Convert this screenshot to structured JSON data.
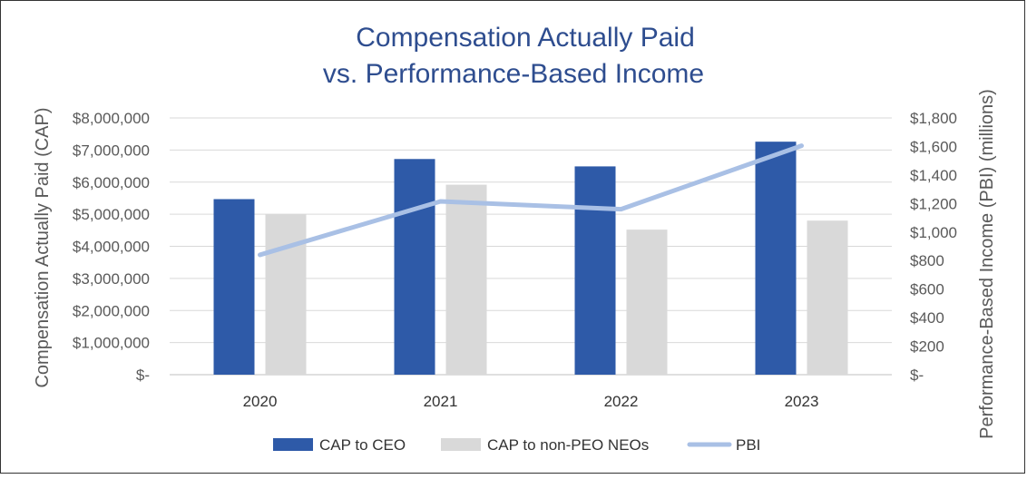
{
  "chart_data": {
    "type": "bar",
    "title_lines": [
      "Compensation Actually Paid",
      "vs. Performance-Based Income"
    ],
    "categories": [
      "2020",
      "2021",
      "2022",
      "2023"
    ],
    "series": [
      {
        "name": "CAP to CEO",
        "kind": "bar",
        "axis": "left",
        "color": "#2E5AA8",
        "values": [
          5470000,
          6720000,
          6490000,
          7260000
        ]
      },
      {
        "name": "CAP to non-PEO NEOs",
        "kind": "bar",
        "axis": "left",
        "color": "#D9D9D9",
        "values": [
          4990000,
          5920000,
          4520000,
          4800000
        ]
      },
      {
        "name": "PBI",
        "kind": "line",
        "axis": "right",
        "color": "#A9C0E5",
        "values": [
          840,
          1215,
          1160,
          1605
        ]
      }
    ],
    "y_left": {
      "label": "Compensation Actually Paid (CAP)",
      "min": 0,
      "max": 8000000,
      "step": 1000000,
      "tick_labels": [
        "$-",
        "$1,000,000",
        "$2,000,000",
        "$3,000,000",
        "$4,000,000",
        "$5,000,000",
        "$6,000,000",
        "$7,000,000",
        "$8,000,000"
      ]
    },
    "y_right": {
      "label": "Performance-Based Income (PBI) (millions)",
      "min": 0,
      "max": 1800,
      "step": 200,
      "tick_labels": [
        "$-",
        "$200",
        "$400",
        "$600",
        "$800",
        "$1,000",
        "$1,200",
        "$1,400",
        "$1,600",
        "$1,800"
      ]
    },
    "grid": true,
    "legend_position": "bottom"
  }
}
